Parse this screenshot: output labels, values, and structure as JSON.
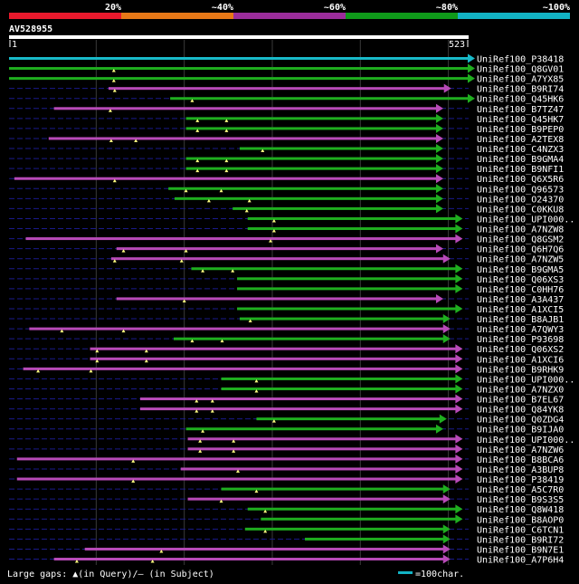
{
  "colorbar": {
    "segments": [
      {
        "label": "",
        "color": "#e8192c"
      },
      {
        "label": "20%",
        "color": "#e77817"
      },
      {
        "label": "~40%",
        "color": "#9b2d9b"
      },
      {
        "label": "~60%",
        "color": "#0f9a1a"
      },
      {
        "label": "~80%",
        "color": "#12b3c4"
      }
    ],
    "end_label": "~100%"
  },
  "query": {
    "name": "AV528955",
    "start": "1",
    "end": "523",
    "length": 523
  },
  "legend": {
    "gaps_text": "Large gaps: ▲(in Query)/– (in Subject)",
    "scale_text": "=100char.",
    "scale_color": "#12b3c4"
  },
  "colors": {
    "magenta": "#b84ab8",
    "green": "#1fae1f",
    "cyan": "#18b9c8",
    "dashed": "#1a1a8a",
    "grid": "#3a3a3a",
    "tri": "#ffff80"
  },
  "hits": [
    {
      "name": "UniRef100_P38418",
      "color": "cyan",
      "start": 1,
      "end": 523,
      "tris": []
    },
    {
      "name": "UniRef100_Q8GV01",
      "color": "green",
      "start": 1,
      "end": 523,
      "tris": [
        120
      ]
    },
    {
      "name": "UniRef100_A7YX85",
      "color": "green",
      "start": 1,
      "end": 523,
      "tris": [
        120
      ]
    },
    {
      "name": "UniRef100_B9RI74",
      "color": "magenta",
      "start": 114,
      "end": 496,
      "tris": [
        121
      ]
    },
    {
      "name": "UniRef100_Q45HK6",
      "color": "green",
      "start": 184,
      "end": 523,
      "tris": [
        209
      ]
    },
    {
      "name": "UniRef100_B7TZ47",
      "color": "magenta",
      "start": 52,
      "end": 487,
      "tris": [
        116
      ]
    },
    {
      "name": "UniRef100_Q45HK7",
      "color": "green",
      "start": 202,
      "end": 487,
      "tris": [
        215,
        248
      ]
    },
    {
      "name": "UniRef100_B9PEP0",
      "color": "green",
      "start": 202,
      "end": 487,
      "tris": [
        215,
        248
      ]
    },
    {
      "name": "UniRef100_A2TEX8",
      "color": "magenta",
      "start": 46,
      "end": 487,
      "tris": [
        117,
        145
      ]
    },
    {
      "name": "UniRef100_C4NZX3",
      "color": "green",
      "start": 263,
      "end": 487,
      "tris": [
        289
      ]
    },
    {
      "name": "UniRef100_B9GMA4",
      "color": "green",
      "start": 202,
      "end": 487,
      "tris": [
        215,
        248
      ]
    },
    {
      "name": "UniRef100_B9NFI1",
      "color": "green",
      "start": 202,
      "end": 487,
      "tris": [
        215,
        248
      ]
    },
    {
      "name": "UniRef100_Q6X5R6",
      "color": "magenta",
      "start": 7,
      "end": 487,
      "tris": [
        121
      ]
    },
    {
      "name": "UniRef100_Q96573",
      "color": "green",
      "start": 182,
      "end": 487,
      "tris": [
        202,
        242
      ]
    },
    {
      "name": "UniRef100_O24370",
      "color": "green",
      "start": 189,
      "end": 487,
      "tris": [
        228,
        274
      ]
    },
    {
      "name": "UniRef100_C0KKU8",
      "color": "green",
      "start": 255,
      "end": 487,
      "tris": [
        271
      ]
    },
    {
      "name": "UniRef100_UPI000..",
      "color": "green",
      "start": 272,
      "end": 509,
      "tris": [
        302
      ]
    },
    {
      "name": "UniRef100_A7NZW8",
      "color": "green",
      "start": 272,
      "end": 509,
      "tris": [
        302
      ]
    },
    {
      "name": "UniRef100_Q8GSM2",
      "color": "magenta",
      "start": 20,
      "end": 509,
      "tris": [
        298
      ]
    },
    {
      "name": "UniRef100_Q6H7Q6",
      "color": "magenta",
      "start": 123,
      "end": 487,
      "tris": [
        131,
        202
      ]
    },
    {
      "name": "UniRef100_A7NZW5",
      "color": "magenta",
      "start": 117,
      "end": 495,
      "tris": [
        121,
        197
      ]
    },
    {
      "name": "UniRef100_B9GMA5",
      "color": "green",
      "start": 208,
      "end": 509,
      "tris": [
        221,
        255
      ]
    },
    {
      "name": "UniRef100_Q06XS3",
      "color": "green",
      "start": 260,
      "end": 509,
      "tris": []
    },
    {
      "name": "UniRef100_C0HH76",
      "color": "green",
      "start": 260,
      "end": 509,
      "tris": []
    },
    {
      "name": "UniRef100_A3A437",
      "color": "magenta",
      "start": 123,
      "end": 487,
      "tris": [
        200
      ]
    },
    {
      "name": "UniRef100_A1XCI5",
      "color": "green",
      "start": 260,
      "end": 509,
      "tris": []
    },
    {
      "name": "UniRef100_B8AJB1",
      "color": "green",
      "start": 263,
      "end": 495,
      "tris": [
        275
      ]
    },
    {
      "name": "UniRef100_A7QWY3",
      "color": "magenta",
      "start": 24,
      "end": 495,
      "tris": [
        61,
        131
      ]
    },
    {
      "name": "UniRef100_P93698",
      "color": "green",
      "start": 188,
      "end": 495,
      "tris": [
        209,
        243
      ]
    },
    {
      "name": "UniRef100_Q06XS2",
      "color": "magenta",
      "start": 93,
      "end": 509,
      "tris": [
        101,
        157
      ]
    },
    {
      "name": "UniRef100_A1XCI6",
      "color": "magenta",
      "start": 93,
      "end": 509,
      "tris": [
        101,
        157
      ]
    },
    {
      "name": "UniRef100_B9RHK9",
      "color": "magenta",
      "start": 17,
      "end": 509,
      "tris": [
        34,
        94
      ]
    },
    {
      "name": "UniRef100_UPI000..",
      "color": "green",
      "start": 242,
      "end": 509,
      "tris": [
        282
      ]
    },
    {
      "name": "UniRef100_A7NZX0",
      "color": "green",
      "start": 242,
      "end": 509,
      "tris": [
        282
      ]
    },
    {
      "name": "UniRef100_B7EL67",
      "color": "magenta",
      "start": 150,
      "end": 509,
      "tris": [
        214,
        232
      ]
    },
    {
      "name": "UniRef100_Q84YK8",
      "color": "magenta",
      "start": 150,
      "end": 509,
      "tris": [
        214,
        232
      ]
    },
    {
      "name": "UniRef100_Q0ZDG4",
      "color": "green",
      "start": 282,
      "end": 491,
      "tris": [
        302
      ]
    },
    {
      "name": "UniRef100_B9IJA0",
      "color": "green",
      "start": 202,
      "end": 487,
      "tris": [
        221
      ]
    },
    {
      "name": "UniRef100_UPI000..",
      "color": "magenta",
      "start": 204,
      "end": 509,
      "tris": [
        218,
        256
      ]
    },
    {
      "name": "UniRef100_A7NZW6",
      "color": "magenta",
      "start": 204,
      "end": 509,
      "tris": [
        218,
        256
      ]
    },
    {
      "name": "UniRef100_B8BCA6",
      "color": "magenta",
      "start": 10,
      "end": 509,
      "tris": [
        142
      ]
    },
    {
      "name": "UniRef100_A3BUP8",
      "color": "magenta",
      "start": 196,
      "end": 509,
      "tris": [
        261
      ]
    },
    {
      "name": "UniRef100_P38419",
      "color": "magenta",
      "start": 10,
      "end": 509,
      "tris": [
        142
      ]
    },
    {
      "name": "UniRef100_A5C7R0",
      "color": "green",
      "start": 242,
      "end": 495,
      "tris": [
        282
      ]
    },
    {
      "name": "UniRef100_B9S3S5",
      "color": "magenta",
      "start": 204,
      "end": 495,
      "tris": [
        242
      ]
    },
    {
      "name": "UniRef100_Q8W418",
      "color": "green",
      "start": 272,
      "end": 509,
      "tris": [
        292
      ]
    },
    {
      "name": "UniRef100_B8AOP0",
      "color": "green",
      "start": 287,
      "end": 509,
      "tris": []
    },
    {
      "name": "UniRef100_C6TCN1",
      "color": "green",
      "start": 269,
      "end": 495,
      "tris": [
        292
      ]
    },
    {
      "name": "UniRef100_B9RI72",
      "color": "green",
      "start": 337,
      "end": 495,
      "tris": []
    },
    {
      "name": "UniRef100_B9N7E1",
      "color": "magenta",
      "start": 87,
      "end": 495,
      "tris": [
        174
      ]
    },
    {
      "name": "UniRef100_A7P6H4",
      "color": "magenta",
      "start": 52,
      "end": 495,
      "tris": [
        78,
        164
      ]
    }
  ]
}
